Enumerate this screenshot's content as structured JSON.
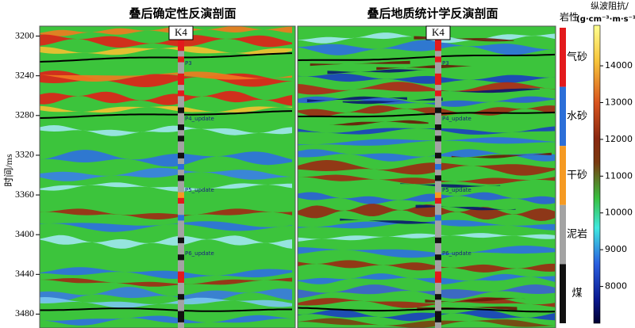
{
  "titles": [
    "叠后确定性反演剖面",
    "叠后地质统计学反演剖面"
  ],
  "well": "K4",
  "horizons": [
    "P3",
    "P4_update",
    "P5_update",
    "P6_update"
  ],
  "y_axis": {
    "label": "时间/ms",
    "lim": [
      3190,
      3494
    ],
    "ticks": [
      3200,
      3240,
      3280,
      3320,
      3360,
      3400,
      3440,
      3480
    ]
  },
  "lithology": {
    "title": "岩性",
    "items": [
      {
        "name": "气砂",
        "color": "#e31a1c"
      },
      {
        "name": "水砂",
        "color": "#2c6fd8"
      },
      {
        "name": "干砂",
        "color": "#f59a23"
      },
      {
        "name": "泥岩",
        "color": "#a3a3a3"
      },
      {
        "name": "煤",
        "color": "#111111"
      }
    ]
  },
  "colorbar": {
    "title": [
      "纵波阻抗/",
      "(g·cm⁻³·m·s⁻¹)"
    ],
    "lim": [
      7000,
      15100
    ],
    "ticks": [
      8000,
      9000,
      10000,
      11000,
      12000,
      13000,
      14000
    ]
  }
}
